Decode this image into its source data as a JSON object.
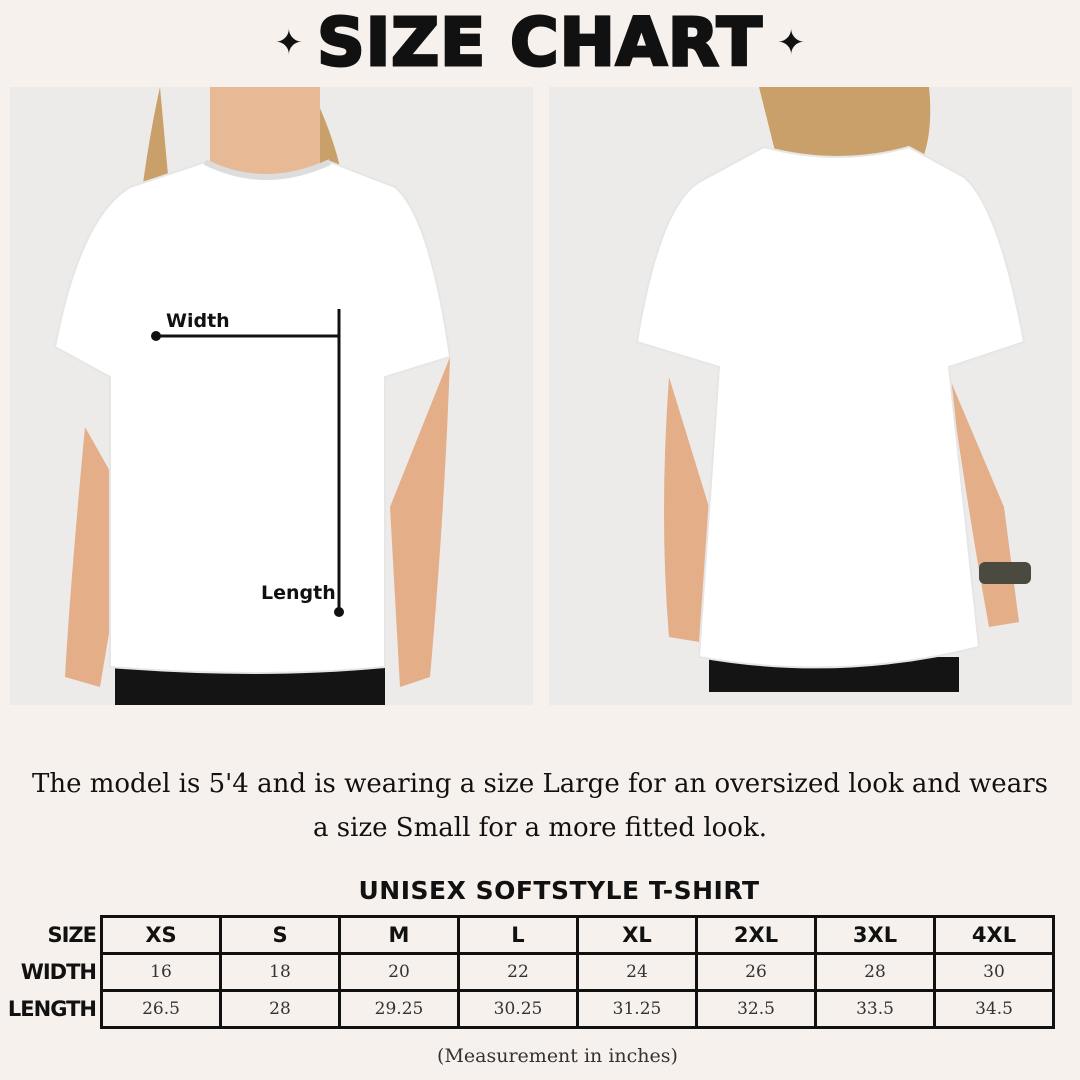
{
  "title": "SIZE CHART",
  "icons": {
    "left": "sparkle-icon",
    "right": "sparkle-icon"
  },
  "front_photo": {
    "width_label": "Width",
    "length_label": "Length"
  },
  "description": {
    "line1": "The model is 5'4 and is wearing a size Large for an oversized look and wears",
    "line2": "a size Small for a more fitted look."
  },
  "table": {
    "title": "UNISEX SOFTSTYLE T-SHIRT",
    "row_headers": [
      "SIZE",
      "WIDTH",
      "LENGTH"
    ],
    "sizes": [
      "XS",
      "S",
      "M",
      "L",
      "XL",
      "2XL",
      "3XL",
      "4XL"
    ],
    "width": [
      "16",
      "18",
      "20",
      "22",
      "24",
      "26",
      "28",
      "30"
    ],
    "length": [
      "26.5",
      "28",
      "29.25",
      "30.25",
      "31.25",
      "32.5",
      "33.5",
      "34.5"
    ]
  },
  "footnote": "(Measurement in inches)"
}
